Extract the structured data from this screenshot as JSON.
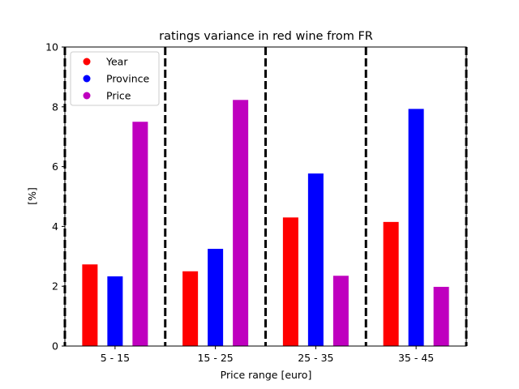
{
  "chart_data": {
    "type": "bar",
    "title": "ratings variance in red wine from FR",
    "xlabel": "Price range [euro]",
    "ylabel": "[%]",
    "categories": [
      "5 - 15",
      "15 - 25",
      "25 - 35",
      "35 - 45"
    ],
    "ylim": [
      0,
      10
    ],
    "yticks": [
      "0",
      "2",
      "4",
      "6",
      "8",
      "10"
    ],
    "grid": false,
    "legend_position": "upper-left",
    "separator_lines": "dashed black vertical lines between category groups",
    "series": [
      {
        "name": "Year",
        "color": "#ff0000",
        "values": [
          2.73,
          2.5,
          4.3,
          4.15
        ]
      },
      {
        "name": "Province",
        "color": "#0000ff",
        "values": [
          2.33,
          3.25,
          5.77,
          7.93
        ]
      },
      {
        "name": "Price",
        "color": "#bf00bf",
        "values": [
          7.5,
          8.23,
          2.35,
          1.98
        ]
      }
    ]
  }
}
